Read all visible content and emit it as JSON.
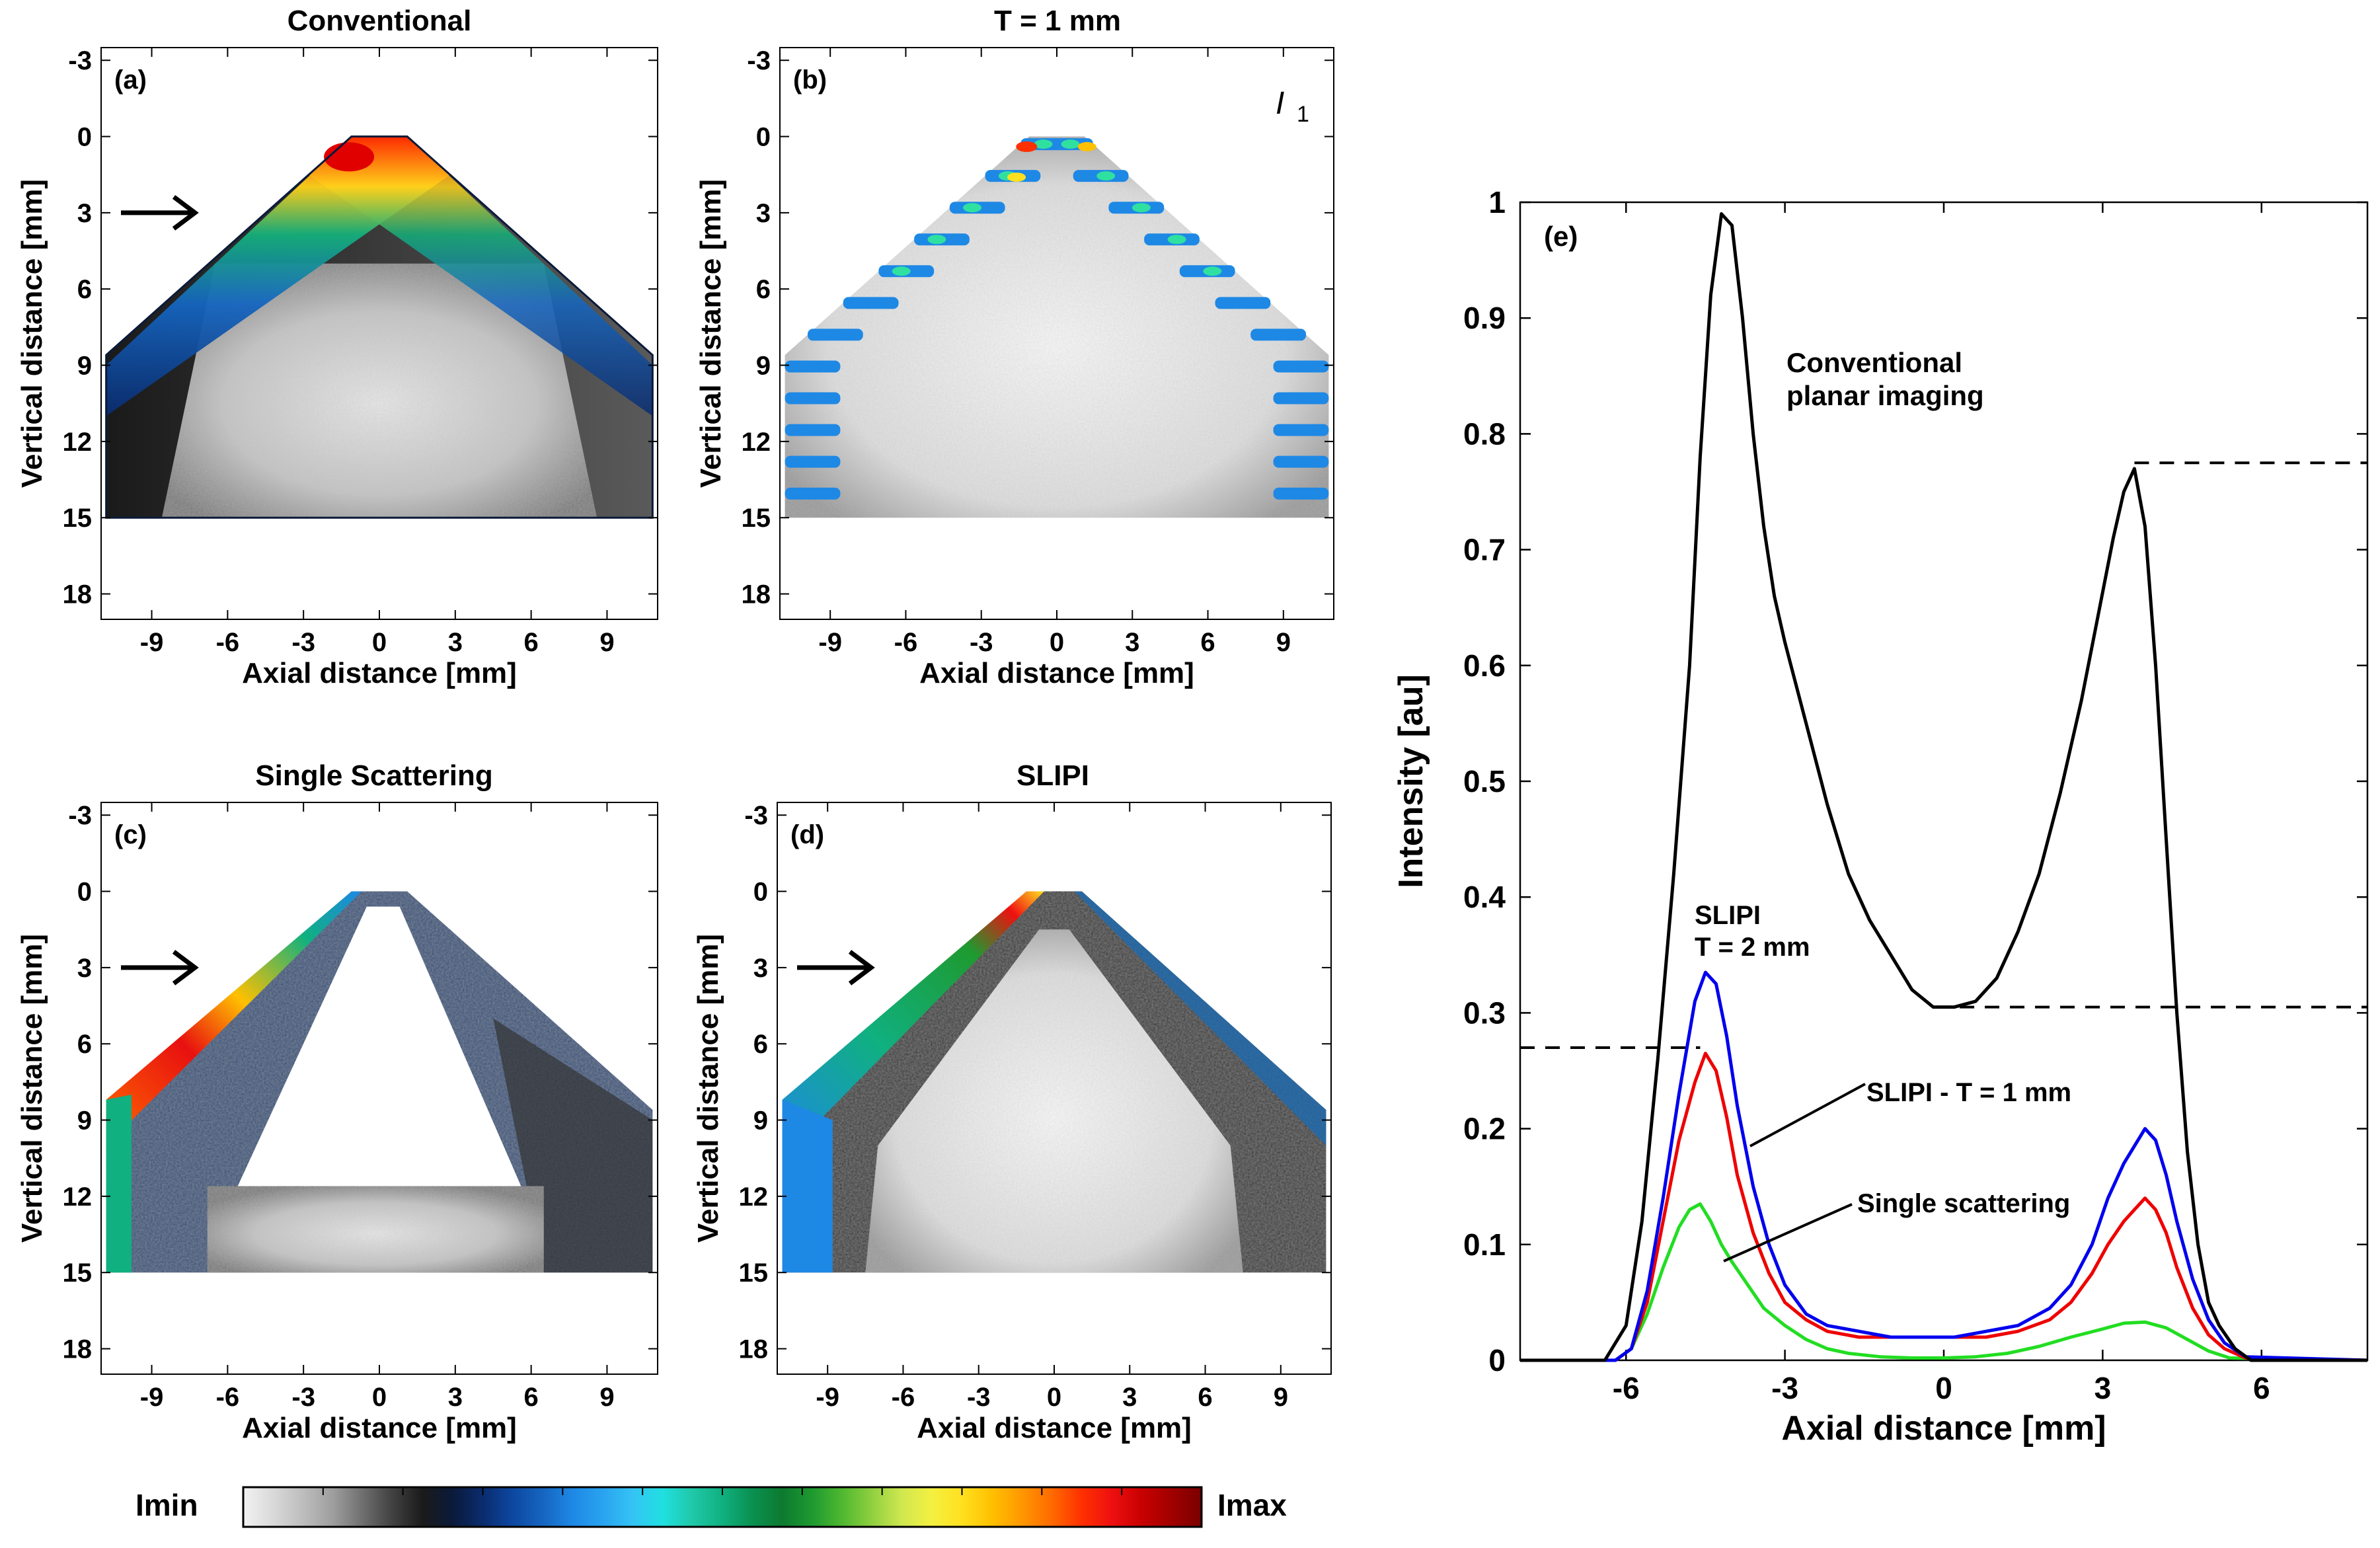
{
  "colorbar": {
    "min_label": "Imin",
    "max_label": "Imax",
    "colors": [
      "#f2f2f2",
      "#d9d9d9",
      "#bdbdbd",
      "#9e9e9e",
      "#6e6e6e",
      "#404040",
      "#1a1a1a",
      "#0a1a3a",
      "#0a2c6e",
      "#0d47a1",
      "#1565c0",
      "#1e88e5",
      "#29a3f0",
      "#35c3f5",
      "#20e0e0",
      "#20c8a8",
      "#10b080",
      "#0a9050",
      "#0d7a30",
      "#1e9a30",
      "#4fb830",
      "#90d040",
      "#d0e850",
      "#f4f040",
      "#ffe020",
      "#ffc000",
      "#ff9800",
      "#ff6a00",
      "#ff3000",
      "#ee1010",
      "#c80000",
      "#a00000",
      "#7a0000"
    ]
  },
  "chart_data": [
    {
      "id": "a",
      "type": "heatmap",
      "title": "Conventional",
      "panel_label": "(a)",
      "xlabel": "Axial distance [mm]",
      "ylabel": "Vertical distance [mm]",
      "xticks": [
        "-9",
        "-6",
        "-3",
        "0",
        "3",
        "6",
        "9"
      ],
      "yticks": [
        "-3",
        "0",
        "3",
        "6",
        "9",
        "12",
        "15",
        "18"
      ],
      "xlim": [
        -11,
        11
      ],
      "ylim": [
        -3.5,
        19
      ],
      "arrow_at_y": 3,
      "regime": "conventional"
    },
    {
      "id": "b",
      "type": "heatmap",
      "title": "T = 1 mm",
      "panel_label": "(b)",
      "annotation": "I",
      "annotation_sub": "1",
      "xlabel": "Axial distance [mm]",
      "ylabel": "Vertical distance [mm]",
      "xticks": [
        "-9",
        "-6",
        "-3",
        "0",
        "3",
        "6",
        "9"
      ],
      "yticks": [
        "-3",
        "0",
        "3",
        "6",
        "9",
        "12",
        "15",
        "18"
      ],
      "xlim": [
        -11,
        11
      ],
      "ylim": [
        -3.5,
        19
      ],
      "regime": "modulated"
    },
    {
      "id": "c",
      "type": "heatmap",
      "title": "Single Scattering",
      "panel_label": "(c)",
      "xlabel": "Axial distance [mm]",
      "ylabel": "Vertical distance [mm]",
      "xticks": [
        "-9",
        "-6",
        "-3",
        "0",
        "3",
        "6",
        "9"
      ],
      "yticks": [
        "-3",
        "0",
        "3",
        "6",
        "9",
        "12",
        "15",
        "18"
      ],
      "xlim": [
        -11,
        11
      ],
      "ylim": [
        -3.5,
        19
      ],
      "arrow_at_y": 3,
      "regime": "single"
    },
    {
      "id": "d",
      "type": "heatmap",
      "title": "SLIPI",
      "panel_label": "(d)",
      "xlabel": "Axial distance [mm]",
      "ylabel": "Vertical distance [mm]",
      "xticks": [
        "-9",
        "-6",
        "-3",
        "0",
        "3",
        "6",
        "9"
      ],
      "yticks": [
        "-3",
        "0",
        "3",
        "6",
        "9",
        "12",
        "15",
        "18"
      ],
      "xlim": [
        -11,
        11
      ],
      "ylim": [
        -3.5,
        19
      ],
      "arrow_at_y": 3,
      "regime": "slipi"
    },
    {
      "id": "e",
      "type": "line",
      "panel_label": "(e)",
      "xlabel": "Axial distance [mm]",
      "ylabel": "Intensity [au]",
      "xlim": [
        -8,
        8
      ],
      "ylim": [
        0,
        1
      ],
      "xticks": [
        -6,
        -3,
        0,
        3,
        6
      ],
      "xtick_labels": [
        "-6",
        "-3",
        "0",
        "3",
        "6"
      ],
      "yticks": [
        0,
        0.1,
        0.2,
        0.3,
        0.4,
        0.5,
        0.6,
        0.7,
        0.8,
        0.9,
        1
      ],
      "ytick_labels": [
        "0",
        "0.1",
        "0.2",
        "0.3",
        "0.4",
        "0.5",
        "0.6",
        "0.7",
        "0.8",
        "0.9",
        "1"
      ],
      "series": [
        {
          "name": "Conventional planar imaging",
          "color": "#000000",
          "x": [
            -8,
            -6.4,
            -6.0,
            -5.7,
            -5.4,
            -5.1,
            -4.8,
            -4.6,
            -4.4,
            -4.2,
            -4.0,
            -3.8,
            -3.6,
            -3.4,
            -3.2,
            -3.0,
            -2.6,
            -2.2,
            -1.8,
            -1.4,
            -1.0,
            -0.6,
            -0.2,
            0.2,
            0.6,
            1.0,
            1.4,
            1.8,
            2.2,
            2.6,
            2.9,
            3.2,
            3.4,
            3.6,
            3.8,
            4.0,
            4.2,
            4.4,
            4.6,
            4.8,
            5.0,
            5.2,
            5.5,
            5.8,
            6.2,
            8
          ],
          "y": [
            0,
            0,
            0.03,
            0.12,
            0.26,
            0.42,
            0.6,
            0.78,
            0.92,
            0.99,
            0.98,
            0.9,
            0.8,
            0.72,
            0.66,
            0.62,
            0.55,
            0.48,
            0.42,
            0.38,
            0.35,
            0.32,
            0.305,
            0.305,
            0.31,
            0.33,
            0.37,
            0.42,
            0.49,
            0.57,
            0.64,
            0.71,
            0.75,
            0.77,
            0.72,
            0.6,
            0.45,
            0.3,
            0.18,
            0.1,
            0.05,
            0.03,
            0.01,
            0,
            0,
            0
          ]
        },
        {
          "name": "SLIPI - T = 2 mm",
          "color": "#0000ee",
          "x": [
            -8,
            -6.2,
            -5.9,
            -5.6,
            -5.3,
            -5.0,
            -4.7,
            -4.5,
            -4.3,
            -4.1,
            -3.9,
            -3.6,
            -3.3,
            -3.0,
            -2.6,
            -2.2,
            -1.6,
            -1.0,
            -0.4,
            0.2,
            0.8,
            1.4,
            2.0,
            2.4,
            2.8,
            3.1,
            3.4,
            3.6,
            3.8,
            4.0,
            4.2,
            4.4,
            4.7,
            5.0,
            5.3,
            5.7,
            8
          ],
          "y": [
            0,
            0,
            0.01,
            0.06,
            0.14,
            0.23,
            0.31,
            0.335,
            0.325,
            0.28,
            0.22,
            0.15,
            0.1,
            0.065,
            0.04,
            0.03,
            0.025,
            0.02,
            0.02,
            0.02,
            0.025,
            0.03,
            0.045,
            0.065,
            0.1,
            0.14,
            0.17,
            0.185,
            0.2,
            0.19,
            0.16,
            0.12,
            0.07,
            0.035,
            0.015,
            0.003,
            0
          ]
        },
        {
          "name": "SLIPI - T = 1 mm",
          "color": "#ee0000",
          "x": [
            -8,
            -6.2,
            -5.9,
            -5.6,
            -5.3,
            -5.0,
            -4.7,
            -4.5,
            -4.3,
            -4.1,
            -3.9,
            -3.6,
            -3.3,
            -3.0,
            -2.6,
            -2.2,
            -1.6,
            -1.0,
            -0.4,
            0.2,
            0.8,
            1.4,
            2.0,
            2.4,
            2.8,
            3.1,
            3.4,
            3.6,
            3.8,
            4.0,
            4.2,
            4.4,
            4.7,
            5.0,
            5.3,
            5.7,
            8
          ],
          "y": [
            0,
            0,
            0.01,
            0.05,
            0.12,
            0.19,
            0.24,
            0.265,
            0.25,
            0.21,
            0.16,
            0.11,
            0.075,
            0.05,
            0.035,
            0.025,
            0.02,
            0.02,
            0.02,
            0.02,
            0.02,
            0.025,
            0.035,
            0.05,
            0.075,
            0.1,
            0.12,
            0.13,
            0.14,
            0.13,
            0.11,
            0.08,
            0.045,
            0.022,
            0.01,
            0.002,
            0
          ]
        },
        {
          "name": "Single scattering",
          "color": "#22dd22",
          "x": [
            -8,
            -6.2,
            -5.9,
            -5.6,
            -5.3,
            -5.0,
            -4.8,
            -4.6,
            -4.4,
            -4.2,
            -4.0,
            -3.7,
            -3.4,
            -3.0,
            -2.6,
            -2.2,
            -1.8,
            -1.2,
            -0.6,
            0,
            0.6,
            1.2,
            1.8,
            2.4,
            3.0,
            3.4,
            3.8,
            4.2,
            4.6,
            5.0,
            5.4,
            8
          ],
          "y": [
            0,
            0,
            0.01,
            0.04,
            0.08,
            0.115,
            0.13,
            0.135,
            0.12,
            0.1,
            0.085,
            0.065,
            0.045,
            0.03,
            0.018,
            0.01,
            0.006,
            0.003,
            0.002,
            0.002,
            0.003,
            0.006,
            0.012,
            0.02,
            0.027,
            0.032,
            0.033,
            0.028,
            0.018,
            0.008,
            0.002,
            0
          ]
        }
      ],
      "dashed_reference_lines": [
        {
          "y": 0.775,
          "x_from": 3.6,
          "x_to": 8
        },
        {
          "y": 0.305,
          "x_from": 0.3,
          "x_to": 8
        },
        {
          "y": 0.27,
          "x_from": -8,
          "x_to": -4.6
        }
      ],
      "annotations": {
        "conventional_1": "Conventional",
        "conventional_2": "planar imaging",
        "slipi2_1": "SLIPI",
        "slipi2_2": "T = 2 mm",
        "slipi1": "SLIPI - T = 1 mm",
        "single": "Single scattering"
      }
    }
  ]
}
